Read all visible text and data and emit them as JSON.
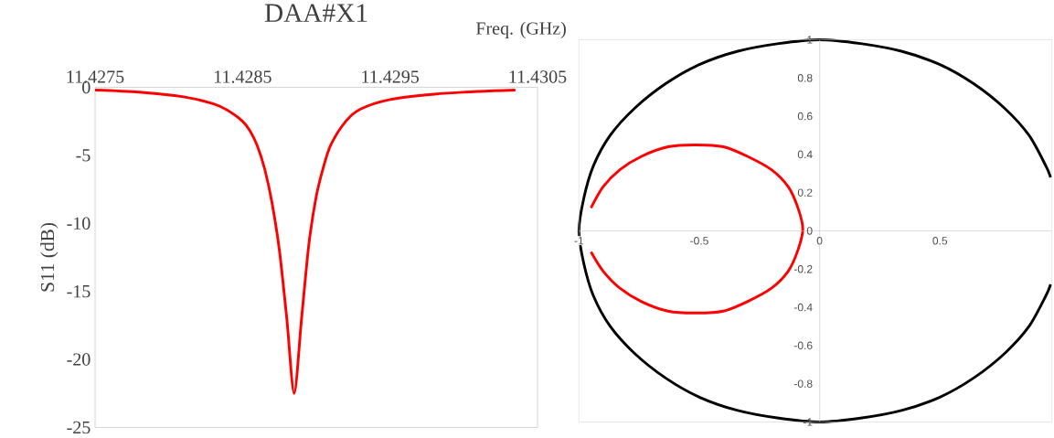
{
  "chart_data": [
    {
      "type": "line",
      "title": "DAA#X1",
      "xlabel": "Freq. (GHz)",
      "ylabel": "S11 (dB)",
      "x": [
        11.4275,
        11.4278,
        11.4281,
        11.4283,
        11.4284,
        11.4285,
        11.42855,
        11.4286,
        11.42865,
        11.4287,
        11.42875,
        11.4288,
        11.42885,
        11.4289,
        11.42895,
        11.429,
        11.42905,
        11.4291,
        11.4292,
        11.4293,
        11.4295,
        11.4298,
        11.4301,
        11.43035
      ],
      "series": [
        {
          "color": "#ff0000",
          "values": [
            -0.2,
            -0.35,
            -0.7,
            -1.2,
            -1.7,
            -2.5,
            -3.2,
            -4.3,
            -6,
            -8.5,
            -12,
            -17,
            -22.5,
            -17,
            -11.5,
            -8,
            -5.8,
            -4.2,
            -2.5,
            -1.6,
            -0.9,
            -0.5,
            -0.3,
            -0.2
          ]
        }
      ],
      "xlim": [
        11.4275,
        11.4305
      ],
      "ylim": [
        -25,
        0
      ],
      "xticks": [
        11.4275,
        11.4285,
        11.4295,
        11.4305
      ],
      "yticks": [
        -25,
        -20,
        -15,
        -10,
        -5,
        0
      ]
    },
    {
      "type": "line",
      "series": [
        {
          "color": "#000000",
          "x": [
            0.96,
            0.94,
            0.87,
            0.77,
            0.64,
            0.5,
            0.34,
            0.17,
            0,
            -0.17,
            -0.34,
            -0.5,
            -0.64,
            -0.77,
            -0.87,
            -0.94,
            -0.98,
            -1,
            -0.98,
            -0.94,
            -0.87,
            -0.77,
            -0.64,
            -0.5,
            -0.34,
            -0.17,
            0,
            0.17,
            0.34,
            0.5,
            0.64,
            0.77,
            0.87,
            0.94,
            0.96
          ],
          "values": [
            0.28,
            0.34,
            0.5,
            0.64,
            0.77,
            0.87,
            0.94,
            0.98,
            1,
            0.98,
            0.94,
            0.87,
            0.77,
            0.64,
            0.5,
            0.34,
            0.17,
            0,
            -0.17,
            -0.34,
            -0.5,
            -0.64,
            -0.77,
            -0.87,
            -0.94,
            -0.98,
            -1,
            -0.98,
            -0.94,
            -0.87,
            -0.77,
            -0.64,
            -0.5,
            -0.34,
            -0.28
          ]
        },
        {
          "color": "#ff0000",
          "x": [
            -0.95,
            -0.9,
            -0.83,
            -0.74,
            -0.63,
            -0.52,
            -0.4,
            -0.3,
            -0.2,
            -0.13,
            -0.09,
            -0.07,
            -0.09,
            -0.13,
            -0.2,
            -0.3,
            -0.4,
            -0.52,
            -0.63,
            -0.74,
            -0.83,
            -0.9,
            -0.95
          ],
          "values": [
            0.12,
            0.23,
            0.32,
            0.39,
            0.44,
            0.45,
            0.44,
            0.39,
            0.32,
            0.23,
            0.12,
            0.01,
            -0.1,
            -0.21,
            -0.3,
            -0.37,
            -0.42,
            -0.43,
            -0.42,
            -0.37,
            -0.3,
            -0.21,
            -0.11
          ]
        }
      ],
      "xlim": [
        -1,
        0.965
      ],
      "ylim": [
        -1,
        1
      ],
      "xticks": [
        -1,
        -0.5,
        0,
        0.5
      ],
      "yticks": [
        -1,
        -0.8,
        -0.6,
        -0.4,
        -0.2,
        0,
        0.2,
        0.4,
        0.6,
        0.8,
        1
      ]
    }
  ]
}
